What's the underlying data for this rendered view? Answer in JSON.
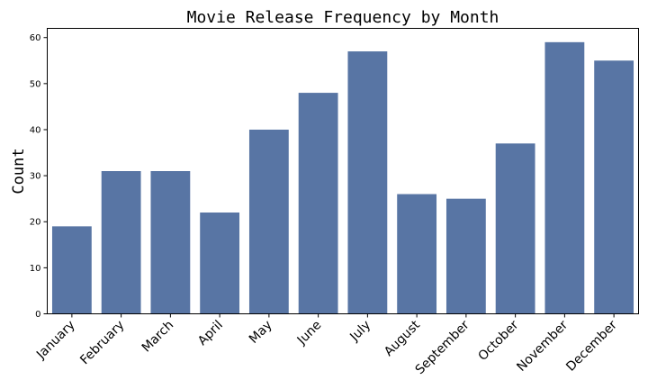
{
  "chart_data": {
    "type": "bar",
    "title": "Movie Release Frequency by Month",
    "xlabel": "",
    "ylabel": "Count",
    "categories": [
      "January",
      "February",
      "March",
      "April",
      "May",
      "June",
      "July",
      "August",
      "September",
      "October",
      "November",
      "December"
    ],
    "values": [
      19,
      31,
      31,
      22,
      40,
      48,
      57,
      26,
      25,
      37,
      59,
      55
    ],
    "ylim": [
      0,
      62
    ],
    "yticks": [
      0,
      10,
      20,
      30,
      40,
      50,
      60
    ],
    "bar_color": "#5875a4",
    "grid": false,
    "legend": "none"
  }
}
